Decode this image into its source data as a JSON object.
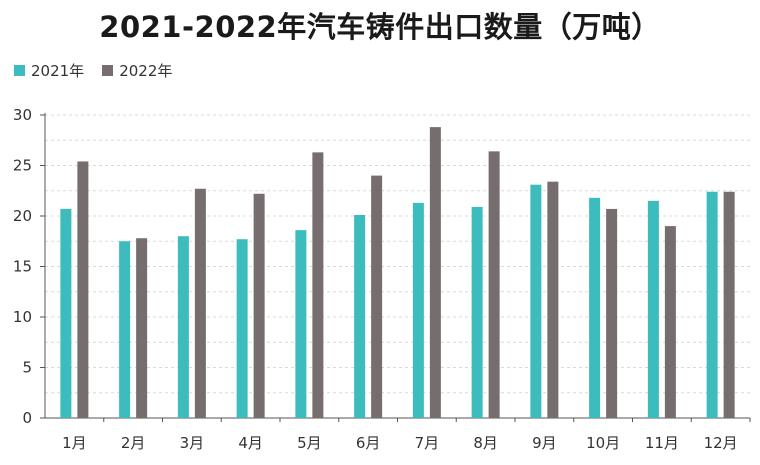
{
  "chart_data": {
    "type": "bar",
    "title": "2021-2022年汽车铸件出口数量（万吨）",
    "categories": [
      "1月",
      "2月",
      "3月",
      "4月",
      "5月",
      "6月",
      "7月",
      "8月",
      "9月",
      "10月",
      "11月",
      "12月"
    ],
    "series": [
      {
        "name": "2021年",
        "color": "#3cbcbc",
        "values": [
          20.7,
          17.5,
          18.0,
          17.7,
          18.6,
          20.1,
          21.3,
          20.9,
          23.1,
          21.8,
          21.5,
          22.4
        ]
      },
      {
        "name": "2022年",
        "color": "#766e6e",
        "values": [
          25.4,
          17.8,
          22.7,
          22.2,
          26.3,
          24.0,
          28.8,
          26.4,
          23.4,
          20.7,
          19.0,
          22.4
        ]
      }
    ],
    "ylim": [
      0,
      30
    ],
    "yticks": [
      0,
      5,
      10,
      15,
      20,
      25,
      30
    ],
    "grid": true,
    "legend": "top-left"
  }
}
